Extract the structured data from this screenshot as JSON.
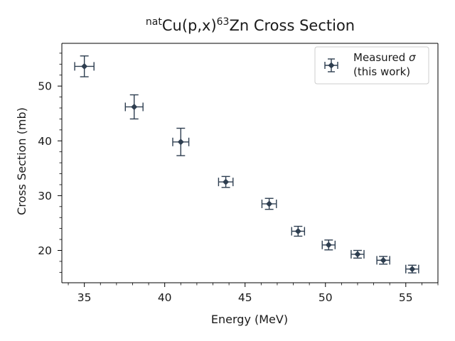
{
  "chart_data": {
    "type": "scatter",
    "title": {
      "sup1": "nat",
      "main1": "Cu(p,x)",
      "sup2": "63",
      "main2": "Zn Cross Section"
    },
    "xlabel": "Energy (MeV)",
    "ylabel": "Cross Section (mb)",
    "xlim": [
      33.6,
      57.0
    ],
    "ylim": [
      14.1,
      57.8
    ],
    "xticks": [
      35,
      40,
      45,
      50,
      55
    ],
    "yticks": [
      20,
      30,
      40,
      50
    ],
    "xminor_step": 1,
    "yminor_step": 2,
    "grid": false,
    "legend_position": "top-right",
    "color": "#2e3e50",
    "series": [
      {
        "name": "Measured σ (this work)",
        "legend_line1_prefix": "Measured ",
        "legend_line1_symbol": "σ",
        "legend_line2": "(this work)",
        "marker": "diamond",
        "points": [
          {
            "x": 35.0,
            "y": 53.6,
            "xerr": 0.6,
            "yerr": 1.9
          },
          {
            "x": 38.1,
            "y": 46.2,
            "xerr": 0.55,
            "yerr": 2.2
          },
          {
            "x": 41.0,
            "y": 39.8,
            "xerr": 0.5,
            "yerr": 2.5
          },
          {
            "x": 43.8,
            "y": 32.5,
            "xerr": 0.45,
            "yerr": 1.0
          },
          {
            "x": 46.5,
            "y": 28.5,
            "xerr": 0.45,
            "yerr": 1.0
          },
          {
            "x": 48.3,
            "y": 23.5,
            "xerr": 0.4,
            "yerr": 0.9
          },
          {
            "x": 50.2,
            "y": 21.0,
            "xerr": 0.4,
            "yerr": 0.9
          },
          {
            "x": 52.0,
            "y": 19.3,
            "xerr": 0.4,
            "yerr": 0.7
          },
          {
            "x": 53.6,
            "y": 18.2,
            "xerr": 0.4,
            "yerr": 0.7
          },
          {
            "x": 55.4,
            "y": 16.6,
            "xerr": 0.4,
            "yerr": 0.7
          }
        ]
      }
    ]
  }
}
